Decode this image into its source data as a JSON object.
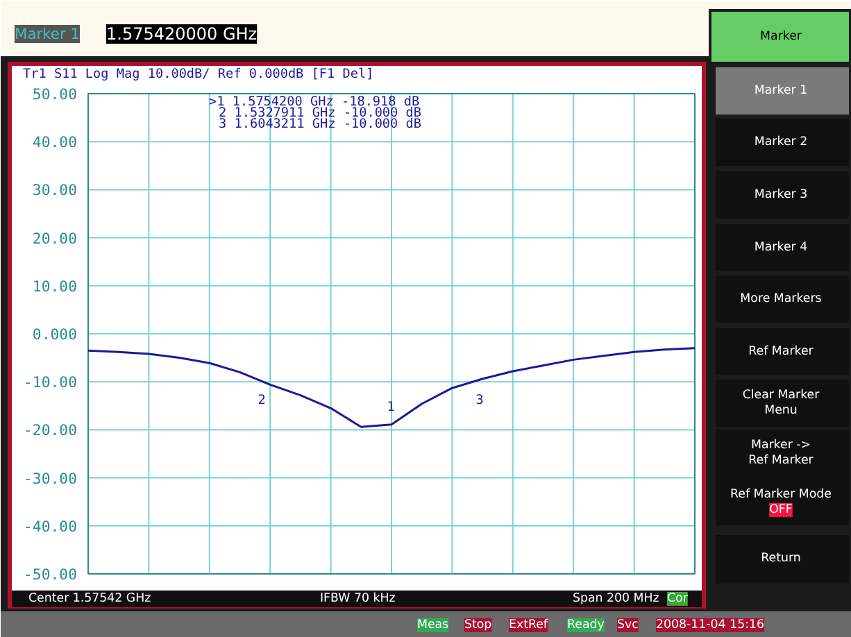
{
  "chart_data": {
    "type": "line",
    "title": "Tr1 S11 Log Mag 10.00dB/ Ref 0.000dB [F1 Del]",
    "categories": [
      null,
      null,
      null,
      null,
      null,
      null,
      null,
      null,
      null,
      null,
      null,
      null,
      null,
      null,
      null,
      null,
      null,
      null,
      null,
      null,
      null
    ],
    "series": [
      {
        "color": "#1a1a9a",
        "values": [
          -3.5,
          -3.8,
          -4.2,
          -5.0,
          -6.1,
          -8.0,
          -10.6,
          -12.8,
          -15.5,
          -19.4,
          -18.9,
          -14.6,
          -11.3,
          -9.4,
          -7.8,
          -6.6,
          -5.4,
          -4.6,
          -3.8,
          -3.3,
          -3.0
        ]
      }
    ],
    "ylim": [
      -50,
      50
    ],
    "yticks": [
      {
        "value": 50,
        "label": "50.00"
      },
      {
        "value": 40,
        "label": "40.00"
      },
      {
        "value": 30,
        "label": "30.00"
      },
      {
        "value": 20,
        "label": "20.00"
      },
      {
        "value": 10,
        "label": "10.00"
      },
      {
        "value": 0,
        "label": "0.000"
      },
      {
        "value": -10,
        "label": "-10.00"
      },
      {
        "value": -20,
        "label": "-20.00"
      },
      {
        "value": -30,
        "label": "-30.00"
      },
      {
        "value": -40,
        "label": "-40.00"
      },
      {
        "value": -50,
        "label": "-50.00"
      }
    ],
    "tick_labels": "y",
    "grid": true,
    "marker": "none",
    "line_style": "solid",
    "annotations": [
      "1",
      "2",
      "3",
      ">1  1.5754200 GHz  -18.918 dB",
      "2  1.5327911 GHz  -10.000 dB",
      "3  1.6043211 GHz  -10.000 dB",
      "Marker 1",
      "1.575420000 GHz",
      "Center 1.57542 GHz",
      "IFBW 70 kHz",
      "Span 200 MHz",
      "Cor",
      "Meas",
      "Stop",
      "ExtRef",
      "Ready",
      "Svc",
      "2008-11-04 15:16",
      "Marker",
      "Marker 1",
      "Marker 2",
      "Marker 3",
      "Marker 4",
      "More Markers",
      "Ref Marker",
      "Clear Marker\nMenu",
      "Marker ->\nRef Marker",
      "Ref Marker Mode",
      "OFF",
      "Return"
    ]
  }
}
